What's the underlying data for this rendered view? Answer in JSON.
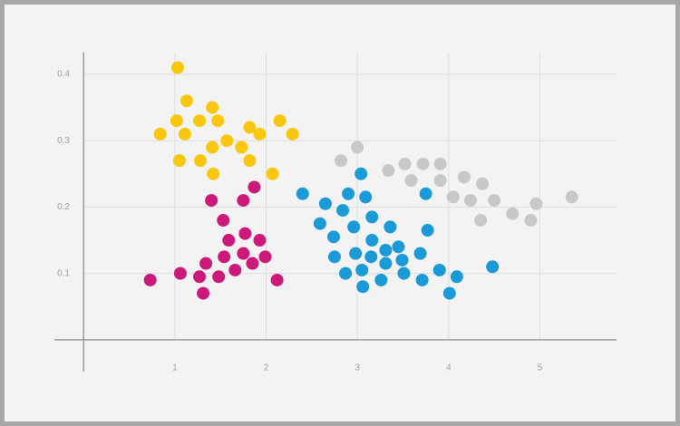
{
  "chart_data": {
    "type": "scatter",
    "xlim": [
      -0.32,
      5.84
    ],
    "ylim": [
      -0.048,
      0.43
    ],
    "xticks": [
      1,
      2,
      3,
      4,
      5
    ],
    "yticks": [
      0.1,
      0.2,
      0.3,
      0.4
    ],
    "grid": true,
    "series": [
      {
        "color": "#f9c80e",
        "x": [
          1.03,
          1.13,
          1.41,
          1.02,
          1.27,
          1.47,
          0.84,
          1.11,
          1.82,
          2.15,
          1.57,
          1.93,
          2.29,
          1.41,
          1.73,
          1.05,
          1.28,
          1.82,
          1.42,
          2.07
        ],
        "values": [
          0.41,
          0.36,
          0.35,
          0.33,
          0.33,
          0.33,
          0.31,
          0.31,
          0.32,
          0.33,
          0.3,
          0.31,
          0.31,
          0.29,
          0.29,
          0.27,
          0.27,
          0.27,
          0.25,
          0.25
        ]
      },
      {
        "color": "#cc1a7a",
        "x": [
          1.87,
          1.4,
          1.75,
          1.53,
          1.77,
          1.59,
          1.93,
          1.75,
          1.54,
          1.99,
          1.34,
          1.85,
          1.66,
          1.06,
          1.27,
          1.48,
          2.12,
          0.73,
          1.31
        ],
        "values": [
          0.23,
          0.21,
          0.21,
          0.18,
          0.16,
          0.15,
          0.15,
          0.13,
          0.125,
          0.125,
          0.115,
          0.115,
          0.105,
          0.1,
          0.095,
          0.095,
          0.09,
          0.09,
          0.07
        ]
      },
      {
        "color": "#1a9ad6",
        "x": [
          3.04,
          2.4,
          2.9,
          3.09,
          3.75,
          2.65,
          2.84,
          3.16,
          2.59,
          2.96,
          3.36,
          3.77,
          2.74,
          3.16,
          3.45,
          3.31,
          2.98,
          2.75,
          3.15,
          3.69,
          3.49,
          3.31,
          4.48,
          3.9,
          3.05,
          2.87,
          3.51,
          4.09,
          3.26,
          3.71,
          3.06,
          4.01
        ],
        "values": [
          0.25,
          0.22,
          0.22,
          0.215,
          0.22,
          0.205,
          0.195,
          0.185,
          0.175,
          0.17,
          0.17,
          0.165,
          0.155,
          0.15,
          0.14,
          0.135,
          0.13,
          0.125,
          0.125,
          0.13,
          0.12,
          0.115,
          0.11,
          0.105,
          0.105,
          0.1,
          0.1,
          0.095,
          0.09,
          0.09,
          0.08,
          0.07
        ]
      },
      {
        "color": "#c8c8c8",
        "x": [
          3.0,
          2.82,
          3.34,
          3.52,
          3.72,
          3.91,
          3.59,
          3.91,
          4.17,
          4.37,
          4.05,
          4.24,
          4.5,
          4.96,
          5.35,
          4.35,
          4.7,
          4.9
        ],
        "values": [
          0.29,
          0.27,
          0.255,
          0.265,
          0.265,
          0.265,
          0.24,
          0.24,
          0.245,
          0.235,
          0.215,
          0.21,
          0.21,
          0.205,
          0.215,
          0.18,
          0.19,
          0.18
        ]
      }
    ]
  }
}
